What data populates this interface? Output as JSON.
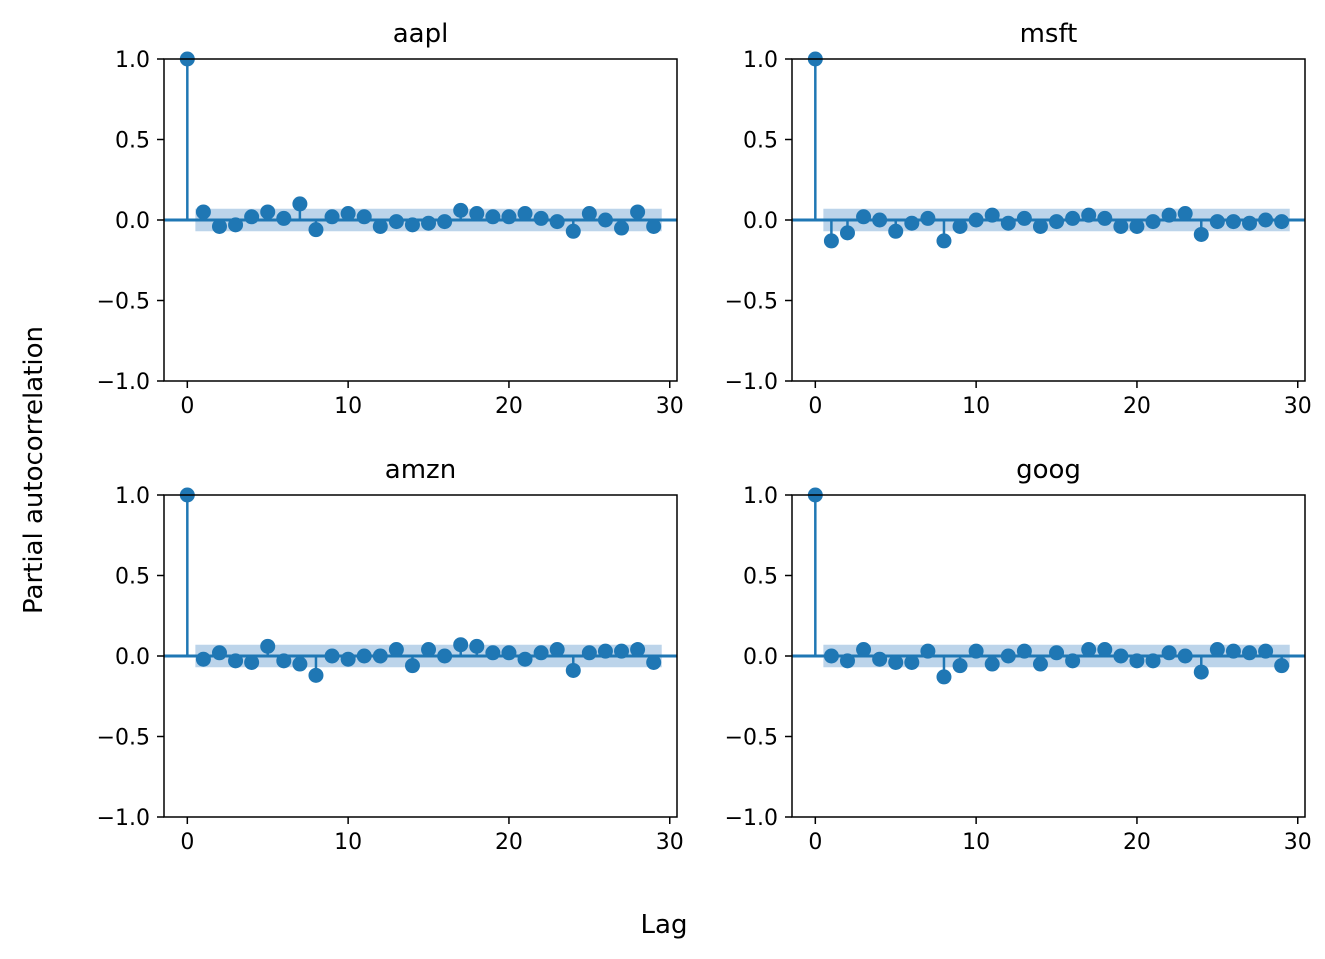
{
  "chart_data": {
    "type": "stem",
    "shared_xlabel": "Lag",
    "shared_ylabel": "Partial autocorrelation",
    "xlim": [
      -1.45,
      30.45
    ],
    "ylim": [
      -1.0,
      1.0
    ],
    "xticks": [
      0,
      10,
      20,
      30
    ],
    "yticks": [
      -1.0,
      -0.5,
      0.0,
      0.5,
      1.0
    ],
    "ytick_labels": [
      "−1.0",
      "−0.5",
      "0.0",
      "0.5",
      "1.0"
    ],
    "color": "#1f77b4",
    "confidence_band": [
      -0.07,
      0.07
    ],
    "confidence_color": "#bcd4ea",
    "panels": [
      {
        "title": "aapl",
        "lags": [
          0,
          1,
          2,
          3,
          4,
          5,
          6,
          7,
          8,
          9,
          10,
          11,
          12,
          13,
          14,
          15,
          16,
          17,
          18,
          19,
          20,
          21,
          22,
          23,
          24,
          25,
          26,
          27,
          28,
          29
        ],
        "values": [
          1.0,
          0.05,
          -0.04,
          -0.03,
          0.02,
          0.05,
          0.01,
          0.1,
          -0.06,
          0.02,
          0.04,
          0.02,
          -0.04,
          -0.01,
          -0.03,
          -0.02,
          -0.01,
          0.06,
          0.04,
          0.02,
          0.02,
          0.04,
          0.01,
          -0.01,
          -0.07,
          0.04,
          0.0,
          -0.05,
          0.05,
          -0.04
        ]
      },
      {
        "title": "msft",
        "lags": [
          0,
          1,
          2,
          3,
          4,
          5,
          6,
          7,
          8,
          9,
          10,
          11,
          12,
          13,
          14,
          15,
          16,
          17,
          18,
          19,
          20,
          21,
          22,
          23,
          24,
          25,
          26,
          27,
          28,
          29
        ],
        "values": [
          1.0,
          -0.13,
          -0.08,
          0.02,
          0.0,
          -0.07,
          -0.02,
          0.01,
          -0.13,
          -0.04,
          0.0,
          0.03,
          -0.02,
          0.01,
          -0.04,
          -0.01,
          0.01,
          0.03,
          0.01,
          -0.04,
          -0.04,
          -0.01,
          0.03,
          0.04,
          -0.09,
          -0.01,
          -0.01,
          -0.02,
          0.0,
          -0.01
        ]
      },
      {
        "title": "amzn",
        "lags": [
          0,
          1,
          2,
          3,
          4,
          5,
          6,
          7,
          8,
          9,
          10,
          11,
          12,
          13,
          14,
          15,
          16,
          17,
          18,
          19,
          20,
          21,
          22,
          23,
          24,
          25,
          26,
          27,
          28,
          29
        ],
        "values": [
          1.0,
          -0.02,
          0.02,
          -0.03,
          -0.04,
          0.06,
          -0.03,
          -0.05,
          -0.12,
          0.0,
          -0.02,
          0.0,
          0.0,
          0.04,
          -0.06,
          0.04,
          0.0,
          0.07,
          0.06,
          0.02,
          0.02,
          -0.02,
          0.02,
          0.04,
          -0.09,
          0.02,
          0.03,
          0.03,
          0.04,
          -0.04
        ]
      },
      {
        "title": "goog",
        "lags": [
          0,
          1,
          2,
          3,
          4,
          5,
          6,
          7,
          8,
          9,
          10,
          11,
          12,
          13,
          14,
          15,
          16,
          17,
          18,
          19,
          20,
          21,
          22,
          23,
          24,
          25,
          26,
          27,
          28,
          29
        ],
        "values": [
          1.0,
          0.0,
          -0.03,
          0.04,
          -0.02,
          -0.04,
          -0.04,
          0.03,
          -0.13,
          -0.06,
          0.03,
          -0.05,
          0.0,
          0.03,
          -0.05,
          0.02,
          -0.03,
          0.04,
          0.04,
          0.0,
          -0.03,
          -0.03,
          0.02,
          0.0,
          -0.1,
          0.04,
          0.03,
          0.02,
          0.03,
          -0.06
        ]
      }
    ]
  }
}
